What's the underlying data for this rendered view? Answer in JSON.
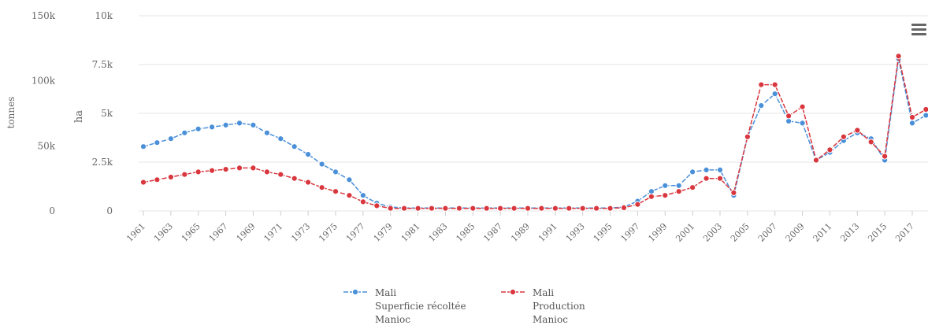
{
  "chart_data": {
    "type": "line",
    "title": "",
    "x": [
      1961,
      1962,
      1963,
      1964,
      1965,
      1966,
      1967,
      1968,
      1969,
      1970,
      1971,
      1972,
      1973,
      1974,
      1975,
      1976,
      1977,
      1978,
      1979,
      1980,
      1981,
      1982,
      1983,
      1984,
      1985,
      1986,
      1987,
      1988,
      1989,
      1990,
      1991,
      1992,
      1993,
      1994,
      1995,
      1996,
      1997,
      1998,
      1999,
      2000,
      2001,
      2002,
      2003,
      2004,
      2005,
      2006,
      2007,
      2008,
      2009,
      2010,
      2011,
      2012,
      2013,
      2014,
      2015,
      2016,
      2017,
      2018
    ],
    "x_tick_labels": [
      "1961",
      "1963",
      "1965",
      "1967",
      "1969",
      "1971",
      "1973",
      "1975",
      "1977",
      "1979",
      "1981",
      "1983",
      "1985",
      "1987",
      "1989",
      "1991",
      "1993",
      "1995",
      "1997",
      "1999",
      "2001",
      "2003",
      "2005",
      "2007",
      "2009",
      "2011",
      "2013",
      "2015",
      "2017"
    ],
    "axes": {
      "left_outer": {
        "label": "tonnes",
        "ticks": [
          "0",
          "50k",
          "100k",
          "150k"
        ],
        "range": [
          0,
          150000
        ]
      },
      "left_inner": {
        "label": "ha",
        "ticks": [
          "0",
          "2.5k",
          "5k",
          "7.5k",
          "10k"
        ],
        "range": [
          0,
          10000
        ]
      }
    },
    "series": [
      {
        "name": "Mali Superficie récoltée Manioc",
        "legend_lines": [
          "Mali",
          "Superficie récoltée",
          "Manioc"
        ],
        "axis": "left_inner",
        "color": "#4a90d9",
        "values": [
          3300,
          3500,
          3700,
          4000,
          4200,
          4300,
          4400,
          4500,
          4400,
          4000,
          3700,
          3300,
          2900,
          2400,
          2000,
          1600,
          800,
          400,
          200,
          150,
          150,
          150,
          150,
          150,
          150,
          150,
          150,
          150,
          150,
          150,
          150,
          150,
          150,
          150,
          150,
          200,
          500,
          1000,
          1300,
          1300,
          2000,
          2100,
          2100,
          800,
          3800,
          5400,
          6000,
          4600,
          4500,
          2600,
          3000,
          3600,
          4000,
          3700,
          2600,
          7800,
          4500,
          4900
        ]
      },
      {
        "name": "Mali Production Manioc",
        "legend_lines": [
          "Mali",
          "Production",
          "Manioc"
        ],
        "axis": "left_outer",
        "color": "#d9363e",
        "values": [
          22000,
          24000,
          26000,
          28000,
          30000,
          31000,
          32000,
          33000,
          33000,
          30000,
          28000,
          25000,
          22000,
          18000,
          15000,
          12000,
          7000,
          4000,
          2000,
          2000,
          2000,
          2000,
          2000,
          2000,
          2000,
          2000,
          2000,
          2000,
          2000,
          2000,
          2000,
          2000,
          2000,
          2000,
          2000,
          2500,
          5000,
          11000,
          12000,
          15000,
          18000,
          25000,
          25000,
          14000,
          57000,
          97000,
          97000,
          73000,
          80000,
          39000,
          47000,
          57000,
          62000,
          53000,
          42000,
          119000,
          72000,
          78000
        ]
      }
    ],
    "legend_position": "bottom-center",
    "grid": true
  },
  "menu_icon": "hamburger-menu-icon"
}
